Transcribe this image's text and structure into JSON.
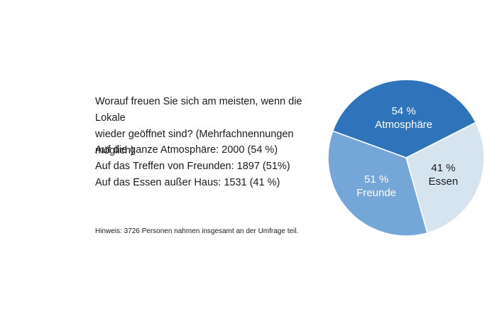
{
  "question": {
    "line1": "Worauf freuen Sie sich am meisten, wenn die Lokale",
    "line2": "wieder geöffnet sind? (Mehrfachnennungen möglich)"
  },
  "answers": [
    "Auf die ganze Atmosphäre: 2000 (54 %)",
    "Auf das Treffen von Freunden: 1897 (51%)",
    "Auf das Essen außer Haus: 1531 (41 %)"
  ],
  "note": "Hinweis: 3726 Personen nahmen insgesamt an der Umfrage teil.",
  "chart_data": {
    "type": "pie",
    "total_respondents": 3726,
    "slices": [
      {
        "label": "Atmosphäre",
        "value_label": "54 %",
        "value": 54,
        "count": 2000,
        "color": "#2f74ba",
        "text_color": "#ffffff"
      },
      {
        "label": "Essen",
        "value_label": "41 %",
        "value": 41,
        "count": 1531,
        "color": "#d6e4f0",
        "text_color": "#1a1a1a"
      },
      {
        "label": "Freunde",
        "value_label": "51 %",
        "value": 51,
        "count": 1897,
        "color": "#74a6d8",
        "text_color": "#ffffff"
      }
    ]
  }
}
